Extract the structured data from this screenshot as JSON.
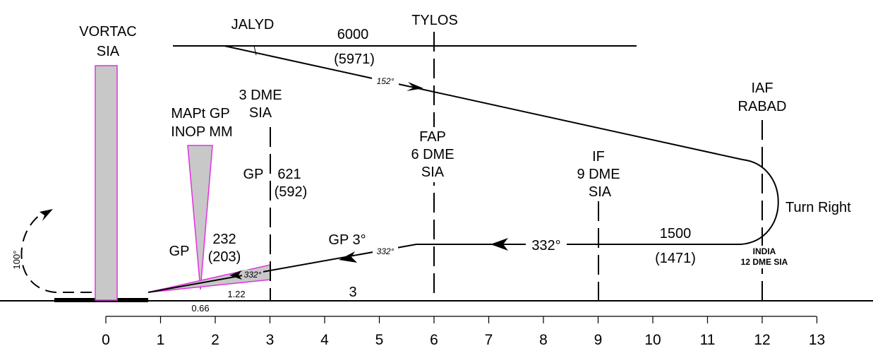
{
  "labels": {
    "vortac_line1": "VORTAC",
    "vortac_line2": "SIA",
    "jalyd": "JALYD",
    "tylos": "TYLOS",
    "alt_top": "6000",
    "alt_top_paren": "(5971)",
    "course_152": "152°",
    "dme3_line1": "3 DME",
    "dme3_line2": "SIA",
    "mapt_line1": "MAPt GP",
    "mapt_line2": "INOP MM",
    "gp_left": "GP",
    "gp_621": "621",
    "gp_621_paren": "(592)",
    "fap_line1": "FAP",
    "fap_line2": "6 DME",
    "fap_line3": "SIA",
    "if_line1": "IF",
    "if_line2": "9 DME",
    "if_line3": "SIA",
    "iaf_line1": "IAF",
    "iaf_line2": "RABAD",
    "turn_right": "Turn Right",
    "alt_1500": "1500",
    "alt_1500_paren": "(1471)",
    "india_line1": "INDIA",
    "india_line2": "12 DME SIA",
    "course_332_big": "332°",
    "course_332_small": "332°",
    "course_332_tiny": "332°",
    "gp_3deg": "GP 3°",
    "gp_232_label": "GP",
    "alt_232": "232",
    "alt_232_paren": "(203)",
    "dist_122": "1.22",
    "dist_066": "0.66",
    "dist_3": "3",
    "missed_100": "100°"
  },
  "axis": {
    "ticks": [
      "0",
      "1",
      "2",
      "3",
      "4",
      "5",
      "6",
      "7",
      "8",
      "9",
      "10",
      "11",
      "12",
      "13"
    ]
  },
  "colors": {
    "line": "#000000",
    "magenta": "#e030e0",
    "fill_gray": "#c8c8c8"
  }
}
